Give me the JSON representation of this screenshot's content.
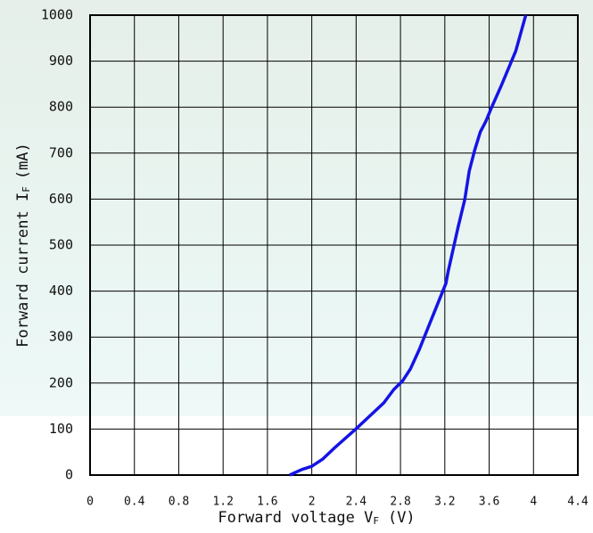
{
  "chart_data": {
    "type": "line",
    "xlabel": [
      "Forward voltage V",
      "F",
      "(V)"
    ],
    "ylabel": [
      "Forward current I",
      "F",
      "(mA)"
    ],
    "x": [
      1.8,
      1.91,
      2.0,
      2.1,
      2.2,
      2.41,
      2.65,
      2.74,
      2.82,
      2.89,
      2.97,
      3.21,
      3.23,
      3.32,
      3.38,
      3.42,
      3.47,
      3.52,
      3.57,
      3.62,
      3.71,
      3.84,
      3.93
    ],
    "values": [
      0,
      12,
      19,
      35,
      58,
      103,
      157,
      186,
      205,
      231,
      273,
      417,
      442,
      539,
      599,
      661,
      707,
      746,
      769,
      798,
      847,
      922,
      1000
    ],
    "color": "#1414e6",
    "xlim": [
      0,
      4.4
    ],
    "xticks": [
      0,
      0.4,
      0.8,
      1.2,
      1.6,
      2,
      2.4,
      2.8,
      3.2,
      3.6,
      4,
      4.4
    ],
    "ylim": [
      0,
      1000
    ],
    "yticks": [
      0,
      100,
      200,
      300,
      400,
      500,
      600,
      700,
      800,
      900,
      1000
    ],
    "grid": true
  }
}
